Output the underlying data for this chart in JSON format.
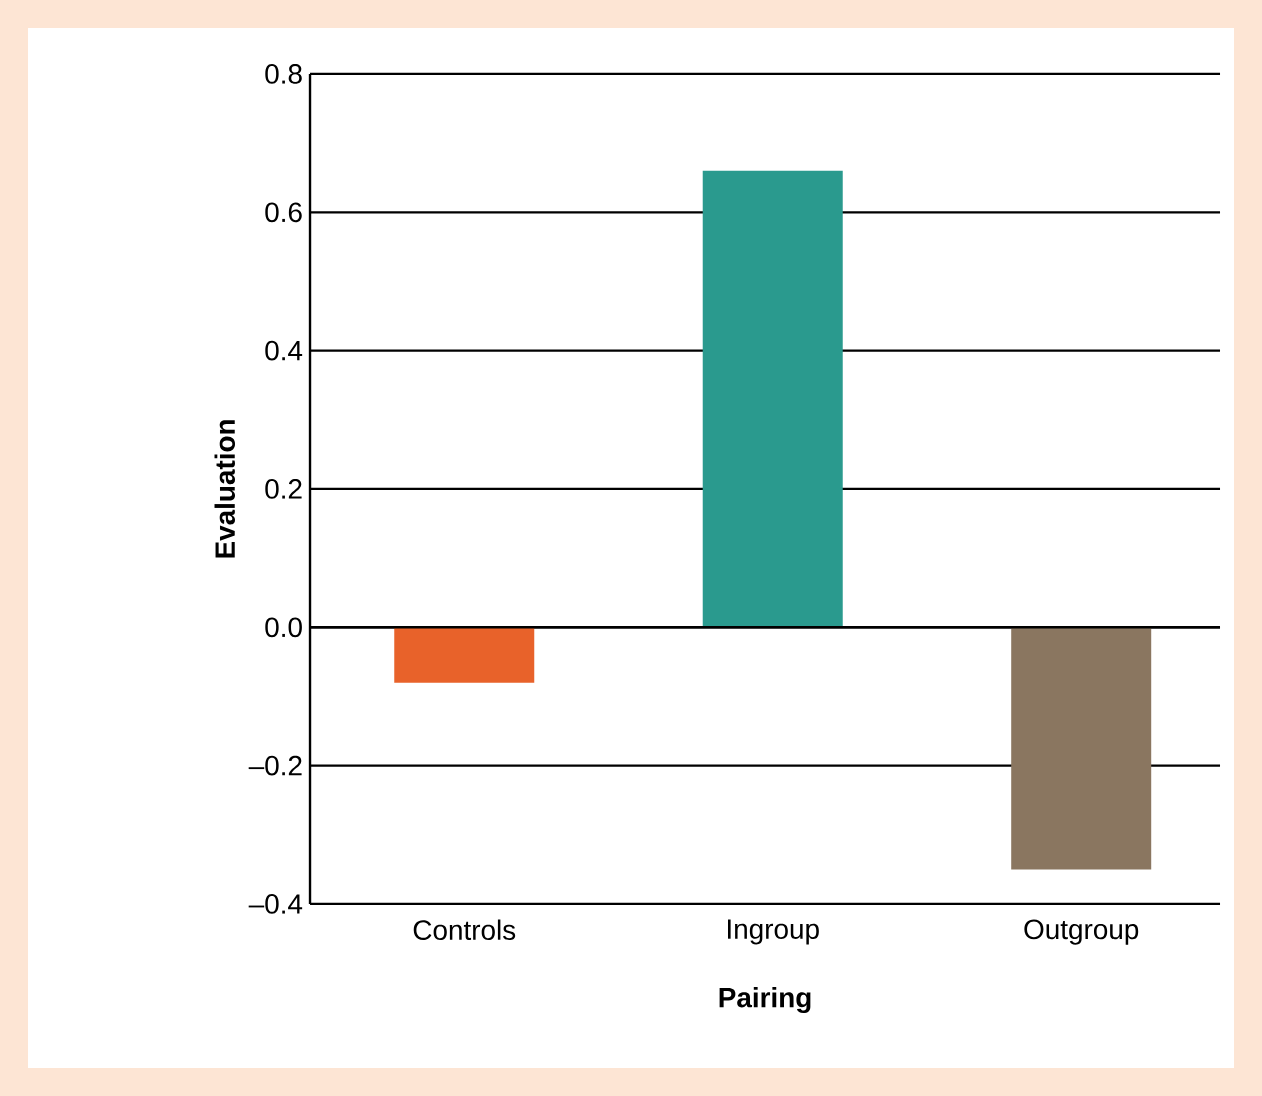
{
  "chart_data": {
    "type": "bar",
    "xlabel": "Pairing",
    "ylabel": "Evaluation",
    "categories": [
      "Controls",
      "Ingroup",
      "Outgroup"
    ],
    "values": [
      -0.08,
      0.66,
      -0.35
    ],
    "colors": [
      "#e8622a",
      "#2a9a8e",
      "#8a7660"
    ],
    "ylim": [
      -0.4,
      0.8
    ],
    "yticks": [
      {
        "value": -0.4,
        "label": "–0.4"
      },
      {
        "value": -0.2,
        "label": "–0.2"
      },
      {
        "value": 0,
        "label": "0.0"
      },
      {
        "value": 0.2,
        "label": "0.2"
      },
      {
        "value": 0.4,
        "label": "0.4"
      },
      {
        "value": 0.6,
        "label": "0.6"
      },
      {
        "value": 0.8,
        "label": "0.8"
      }
    ],
    "grid": "y"
  }
}
